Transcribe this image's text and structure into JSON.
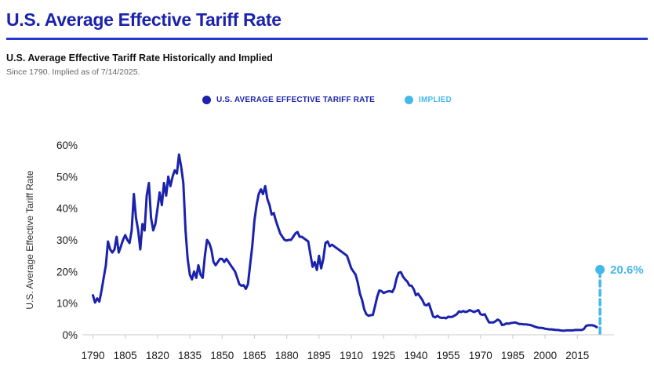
{
  "header": {
    "title": "U.S. Average Effective Tariff Rate",
    "subtitle": "U.S. Average Effective Tariff Rate Historically and Implied",
    "note": "Since 1790. Implied as of 7/14/2025."
  },
  "legend": {
    "items": [
      {
        "label": "U.S. AVERAGE EFFECTIVE TARIFF RATE",
        "color": "#1B22AC"
      },
      {
        "label": "IMPLIED",
        "color": "#45B8EA"
      }
    ]
  },
  "colors": {
    "accent": "#1B22AC",
    "divider": "#2639D2",
    "implied": "#45B8EA",
    "axis_text": "#1a1a1a",
    "baseline": "#c9c9c9"
  },
  "chart_data": {
    "type": "line",
    "title": "U.S. Average Effective Tariff Rate Historically and Implied",
    "ylabel": "U.S. Average Effective Tariff Rate",
    "xlim": [
      1788,
      2032
    ],
    "ylim": [
      0,
      60
    ],
    "grid": false,
    "legend_position": "top-center",
    "yticks": [
      {
        "value": 0,
        "label": "0%"
      },
      {
        "value": 10,
        "label": "10%"
      },
      {
        "value": 20,
        "label": "20%"
      },
      {
        "value": 30,
        "label": "30%"
      },
      {
        "value": 40,
        "label": "40%"
      },
      {
        "value": 50,
        "label": "50%"
      },
      {
        "value": 60,
        "label": "60%"
      }
    ],
    "xticks": [
      1790,
      1805,
      1820,
      1835,
      1850,
      1865,
      1880,
      1895,
      1910,
      1925,
      1940,
      1955,
      1970,
      1985,
      2000,
      2015
    ],
    "series": [
      {
        "name": "U.S. Average Effective Tariff Rate",
        "color": "#1B22AC",
        "points": [
          [
            1790,
            12.5
          ],
          [
            1791,
            10.2
          ],
          [
            1792,
            11.5
          ],
          [
            1793,
            10.5
          ],
          [
            1794,
            14
          ],
          [
            1795,
            18
          ],
          [
            1796,
            22
          ],
          [
            1797,
            29.5
          ],
          [
            1798,
            27
          ],
          [
            1799,
            26
          ],
          [
            1800,
            27
          ],
          [
            1801,
            31
          ],
          [
            1802,
            26
          ],
          [
            1803,
            28
          ],
          [
            1804,
            30
          ],
          [
            1805,
            31.5
          ],
          [
            1806,
            30
          ],
          [
            1807,
            29
          ],
          [
            1808,
            33
          ],
          [
            1809,
            44.5
          ],
          [
            1810,
            37
          ],
          [
            1811,
            33
          ],
          [
            1812,
            27
          ],
          [
            1813,
            35
          ],
          [
            1814,
            33
          ],
          [
            1815,
            44
          ],
          [
            1816,
            48
          ],
          [
            1817,
            37
          ],
          [
            1818,
            33
          ],
          [
            1819,
            35
          ],
          [
            1820,
            40
          ],
          [
            1821,
            45
          ],
          [
            1822,
            41
          ],
          [
            1823,
            48
          ],
          [
            1824,
            44
          ],
          [
            1825,
            50
          ],
          [
            1826,
            47
          ],
          [
            1827,
            50
          ],
          [
            1828,
            52
          ],
          [
            1829,
            51
          ],
          [
            1830,
            57
          ],
          [
            1831,
            53
          ],
          [
            1832,
            48
          ],
          [
            1833,
            33
          ],
          [
            1834,
            24
          ],
          [
            1835,
            19
          ],
          [
            1836,
            17.5
          ],
          [
            1837,
            20
          ],
          [
            1838,
            18
          ],
          [
            1839,
            22
          ],
          [
            1840,
            19
          ],
          [
            1841,
            18
          ],
          [
            1842,
            25
          ],
          [
            1843,
            30
          ],
          [
            1844,
            29
          ],
          [
            1845,
            27
          ],
          [
            1846,
            23
          ],
          [
            1847,
            22
          ],
          [
            1848,
            23
          ],
          [
            1849,
            24
          ],
          [
            1850,
            24
          ],
          [
            1851,
            23
          ],
          [
            1852,
            24
          ],
          [
            1853,
            23
          ],
          [
            1854,
            22
          ],
          [
            1855,
            21
          ],
          [
            1856,
            20
          ],
          [
            1857,
            18
          ],
          [
            1858,
            16
          ],
          [
            1859,
            15.5
          ],
          [
            1860,
            15.7
          ],
          [
            1861,
            14.5
          ],
          [
            1862,
            16
          ],
          [
            1863,
            22
          ],
          [
            1864,
            28
          ],
          [
            1865,
            36
          ],
          [
            1866,
            41
          ],
          [
            1867,
            44.5
          ],
          [
            1868,
            46
          ],
          [
            1869,
            44.5
          ],
          [
            1870,
            47
          ],
          [
            1871,
            43
          ],
          [
            1872,
            41
          ],
          [
            1873,
            38
          ],
          [
            1874,
            38.5
          ],
          [
            1875,
            36
          ],
          [
            1876,
            34
          ],
          [
            1877,
            32
          ],
          [
            1878,
            31
          ],
          [
            1879,
            30
          ],
          [
            1880,
            29.8
          ],
          [
            1881,
            30
          ],
          [
            1882,
            30
          ],
          [
            1883,
            31
          ],
          [
            1884,
            32
          ],
          [
            1885,
            32.5
          ],
          [
            1886,
            31
          ],
          [
            1887,
            31
          ],
          [
            1888,
            30.5
          ],
          [
            1889,
            30
          ],
          [
            1890,
            29.5
          ],
          [
            1891,
            25.5
          ],
          [
            1892,
            21.5
          ],
          [
            1893,
            23
          ],
          [
            1894,
            20.5
          ],
          [
            1895,
            25
          ],
          [
            1896,
            21
          ],
          [
            1897,
            24
          ],
          [
            1898,
            29
          ],
          [
            1899,
            29.5
          ],
          [
            1900,
            28
          ],
          [
            1901,
            28.5
          ],
          [
            1902,
            28
          ],
          [
            1903,
            27.5
          ],
          [
            1904,
            27
          ],
          [
            1905,
            26.5
          ],
          [
            1906,
            26
          ],
          [
            1907,
            25.5
          ],
          [
            1908,
            25
          ],
          [
            1909,
            23
          ],
          [
            1910,
            21
          ],
          [
            1911,
            20
          ],
          [
            1912,
            19
          ],
          [
            1913,
            16.5
          ],
          [
            1914,
            13
          ],
          [
            1915,
            11
          ],
          [
            1916,
            8
          ],
          [
            1917,
            6.5
          ],
          [
            1918,
            6
          ],
          [
            1919,
            6.2
          ],
          [
            1920,
            6.3
          ],
          [
            1921,
            9
          ],
          [
            1922,
            12
          ],
          [
            1923,
            14
          ],
          [
            1924,
            13.8
          ],
          [
            1925,
            13.2
          ],
          [
            1926,
            13.5
          ],
          [
            1927,
            13.7
          ],
          [
            1928,
            13.8
          ],
          [
            1929,
            13.5
          ],
          [
            1930,
            14.8
          ],
          [
            1931,
            17.8
          ],
          [
            1932,
            19.6
          ],
          [
            1933,
            19.8
          ],
          [
            1934,
            18.4
          ],
          [
            1935,
            17.5
          ],
          [
            1936,
            16.8
          ],
          [
            1937,
            15.6
          ],
          [
            1938,
            15.5
          ],
          [
            1939,
            14.4
          ],
          [
            1940,
            12.5
          ],
          [
            1941,
            13
          ],
          [
            1942,
            12
          ],
          [
            1943,
            11
          ],
          [
            1944,
            9.5
          ],
          [
            1945,
            9.3
          ],
          [
            1946,
            9.9
          ],
          [
            1947,
            7.9
          ],
          [
            1948,
            5.8
          ],
          [
            1949,
            5.5
          ],
          [
            1950,
            6
          ],
          [
            1951,
            5.5
          ],
          [
            1952,
            5.3
          ],
          [
            1953,
            5.4
          ],
          [
            1954,
            5.2
          ],
          [
            1955,
            5.7
          ],
          [
            1956,
            5.6
          ],
          [
            1957,
            5.7
          ],
          [
            1958,
            6.1
          ],
          [
            1959,
            6.5
          ],
          [
            1960,
            7.4
          ],
          [
            1961,
            7.2
          ],
          [
            1962,
            7.5
          ],
          [
            1963,
            7.2
          ],
          [
            1964,
            7.4
          ],
          [
            1965,
            7.8
          ],
          [
            1966,
            7.5
          ],
          [
            1967,
            7.2
          ],
          [
            1968,
            7.5
          ],
          [
            1969,
            7.8
          ],
          [
            1970,
            6.5
          ],
          [
            1971,
            6.3
          ],
          [
            1972,
            6.5
          ],
          [
            1973,
            5.1
          ],
          [
            1974,
            3.9
          ],
          [
            1975,
            3.9
          ],
          [
            1976,
            3.9
          ],
          [
            1977,
            4.3
          ],
          [
            1978,
            4.8
          ],
          [
            1979,
            4.4
          ],
          [
            1980,
            3.1
          ],
          [
            1981,
            3.2
          ],
          [
            1982,
            3.6
          ],
          [
            1983,
            3.5
          ],
          [
            1984,
            3.7
          ],
          [
            1985,
            3.8
          ],
          [
            1986,
            3.9
          ],
          [
            1987,
            3.7
          ],
          [
            1988,
            3.4
          ],
          [
            1989,
            3.4
          ],
          [
            1990,
            3.3
          ],
          [
            1991,
            3.3
          ],
          [
            1992,
            3.2
          ],
          [
            1993,
            3.1
          ],
          [
            1994,
            2.9
          ],
          [
            1995,
            2.6
          ],
          [
            1996,
            2.4
          ],
          [
            1997,
            2.2
          ],
          [
            1998,
            2.2
          ],
          [
            1999,
            2.1
          ],
          [
            2000,
            1.9
          ],
          [
            2001,
            1.8
          ],
          [
            2002,
            1.7
          ],
          [
            2003,
            1.7
          ],
          [
            2004,
            1.6
          ],
          [
            2005,
            1.5
          ],
          [
            2006,
            1.5
          ],
          [
            2007,
            1.4
          ],
          [
            2008,
            1.3
          ],
          [
            2009,
            1.3
          ],
          [
            2010,
            1.4
          ],
          [
            2011,
            1.4
          ],
          [
            2012,
            1.4
          ],
          [
            2013,
            1.4
          ],
          [
            2014,
            1.5
          ],
          [
            2015,
            1.5
          ],
          [
            2016,
            1.5
          ],
          [
            2017,
            1.5
          ],
          [
            2018,
            1.8
          ],
          [
            2019,
            2.8
          ],
          [
            2020,
            3
          ],
          [
            2021,
            3
          ],
          [
            2022,
            3
          ],
          [
            2023,
            2.8
          ],
          [
            2024,
            2.4
          ]
        ]
      }
    ],
    "implied": {
      "year": 2025.5,
      "value": 20.6,
      "label": "20.6%",
      "color": "#45B8EA"
    }
  }
}
